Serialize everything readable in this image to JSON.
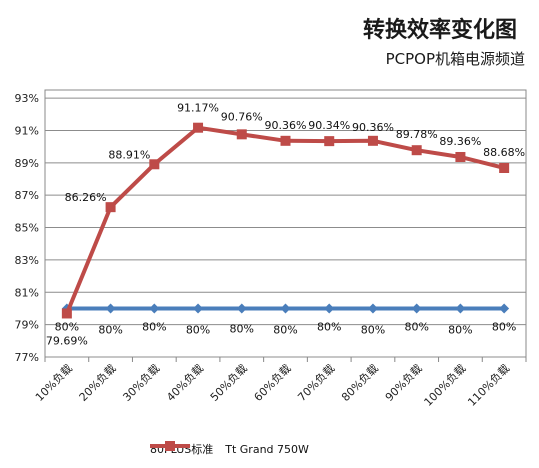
{
  "title": "转换效率变化图",
  "subtitle": "PCPOP机箱电源频道",
  "chart_data": {
    "type": "line",
    "title": "转换效率变化图",
    "subtitle": "PCPOP机箱电源频道",
    "categories": [
      "10%负载",
      "20%负载",
      "30%负载",
      "40%负载",
      "50%负载",
      "60%负载",
      "70%负载",
      "80%负载",
      "90%负载",
      "100%负载",
      "110%负载"
    ],
    "yticks": [
      "77%",
      "79%",
      "81%",
      "83%",
      "85%",
      "87%",
      "89%",
      "91%",
      "93%"
    ],
    "ylim": [
      77,
      93.5
    ],
    "grid": true,
    "legend_position": "bottom",
    "series": [
      {
        "name": "80PLUS标准",
        "color": "#4a7ebb",
        "marker": "diamond",
        "values": [
          80,
          80,
          80,
          80,
          80,
          80,
          80,
          80,
          80,
          80,
          80
        ],
        "labels": [
          "80%",
          "80%",
          "80%",
          "80%",
          "80%",
          "80%",
          "80%",
          "80%",
          "80%",
          "80%",
          "80%"
        ]
      },
      {
        "name": "Tt Grand 750W",
        "color": "#be4b48",
        "marker": "square",
        "values": [
          79.69,
          86.26,
          88.91,
          91.17,
          90.76,
          90.36,
          90.34,
          90.36,
          89.78,
          89.36,
          88.68
        ],
        "labels": [
          "79.69%",
          "86.26%",
          "88.91%",
          "91.17%",
          "90.76%",
          "90.36%",
          "90.34%",
          "90.36%",
          "89.78%",
          "89.36%",
          "88.68%"
        ]
      }
    ]
  }
}
